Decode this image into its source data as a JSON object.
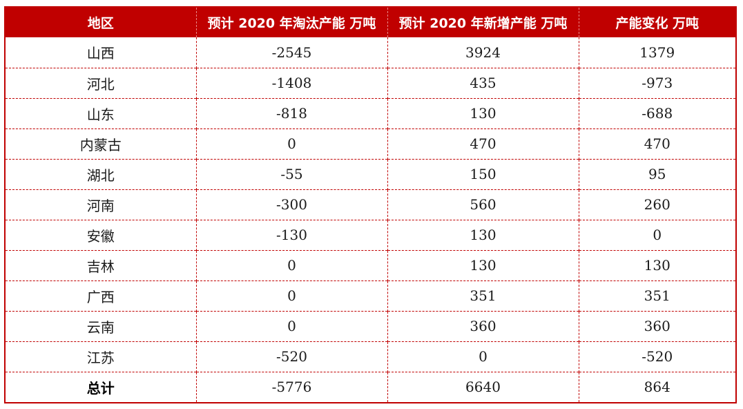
{
  "table": {
    "headers": [
      "地区",
      "预计 2020 年淘汰产能  万吨",
      "预计 2020 年新增产能  万吨",
      "产能变化  万吨"
    ],
    "rows": [
      [
        "山西",
        "-2545",
        "3924",
        "1379"
      ],
      [
        "河北",
        "-1408",
        "435",
        "-973"
      ],
      [
        "山东",
        "-818",
        "130",
        "-688"
      ],
      [
        "内蒙古",
        "0",
        "470",
        "470"
      ],
      [
        "湖北",
        "-55",
        "150",
        "95"
      ],
      [
        "河南",
        "-300",
        "560",
        "260"
      ],
      [
        "安徽",
        "-130",
        "130",
        "0"
      ],
      [
        "吉林",
        "0",
        "130",
        "130"
      ],
      [
        "广西",
        "0",
        "351",
        "351"
      ],
      [
        "云南",
        "0",
        "360",
        "360"
      ],
      [
        "江苏",
        "-520",
        "0",
        "-520"
      ]
    ],
    "total": [
      "总计",
      "-5776",
      "6640",
      "864"
    ]
  },
  "colors": {
    "header_bg": "#c00000",
    "header_text": "#ffffff",
    "border": "#c00000"
  }
}
